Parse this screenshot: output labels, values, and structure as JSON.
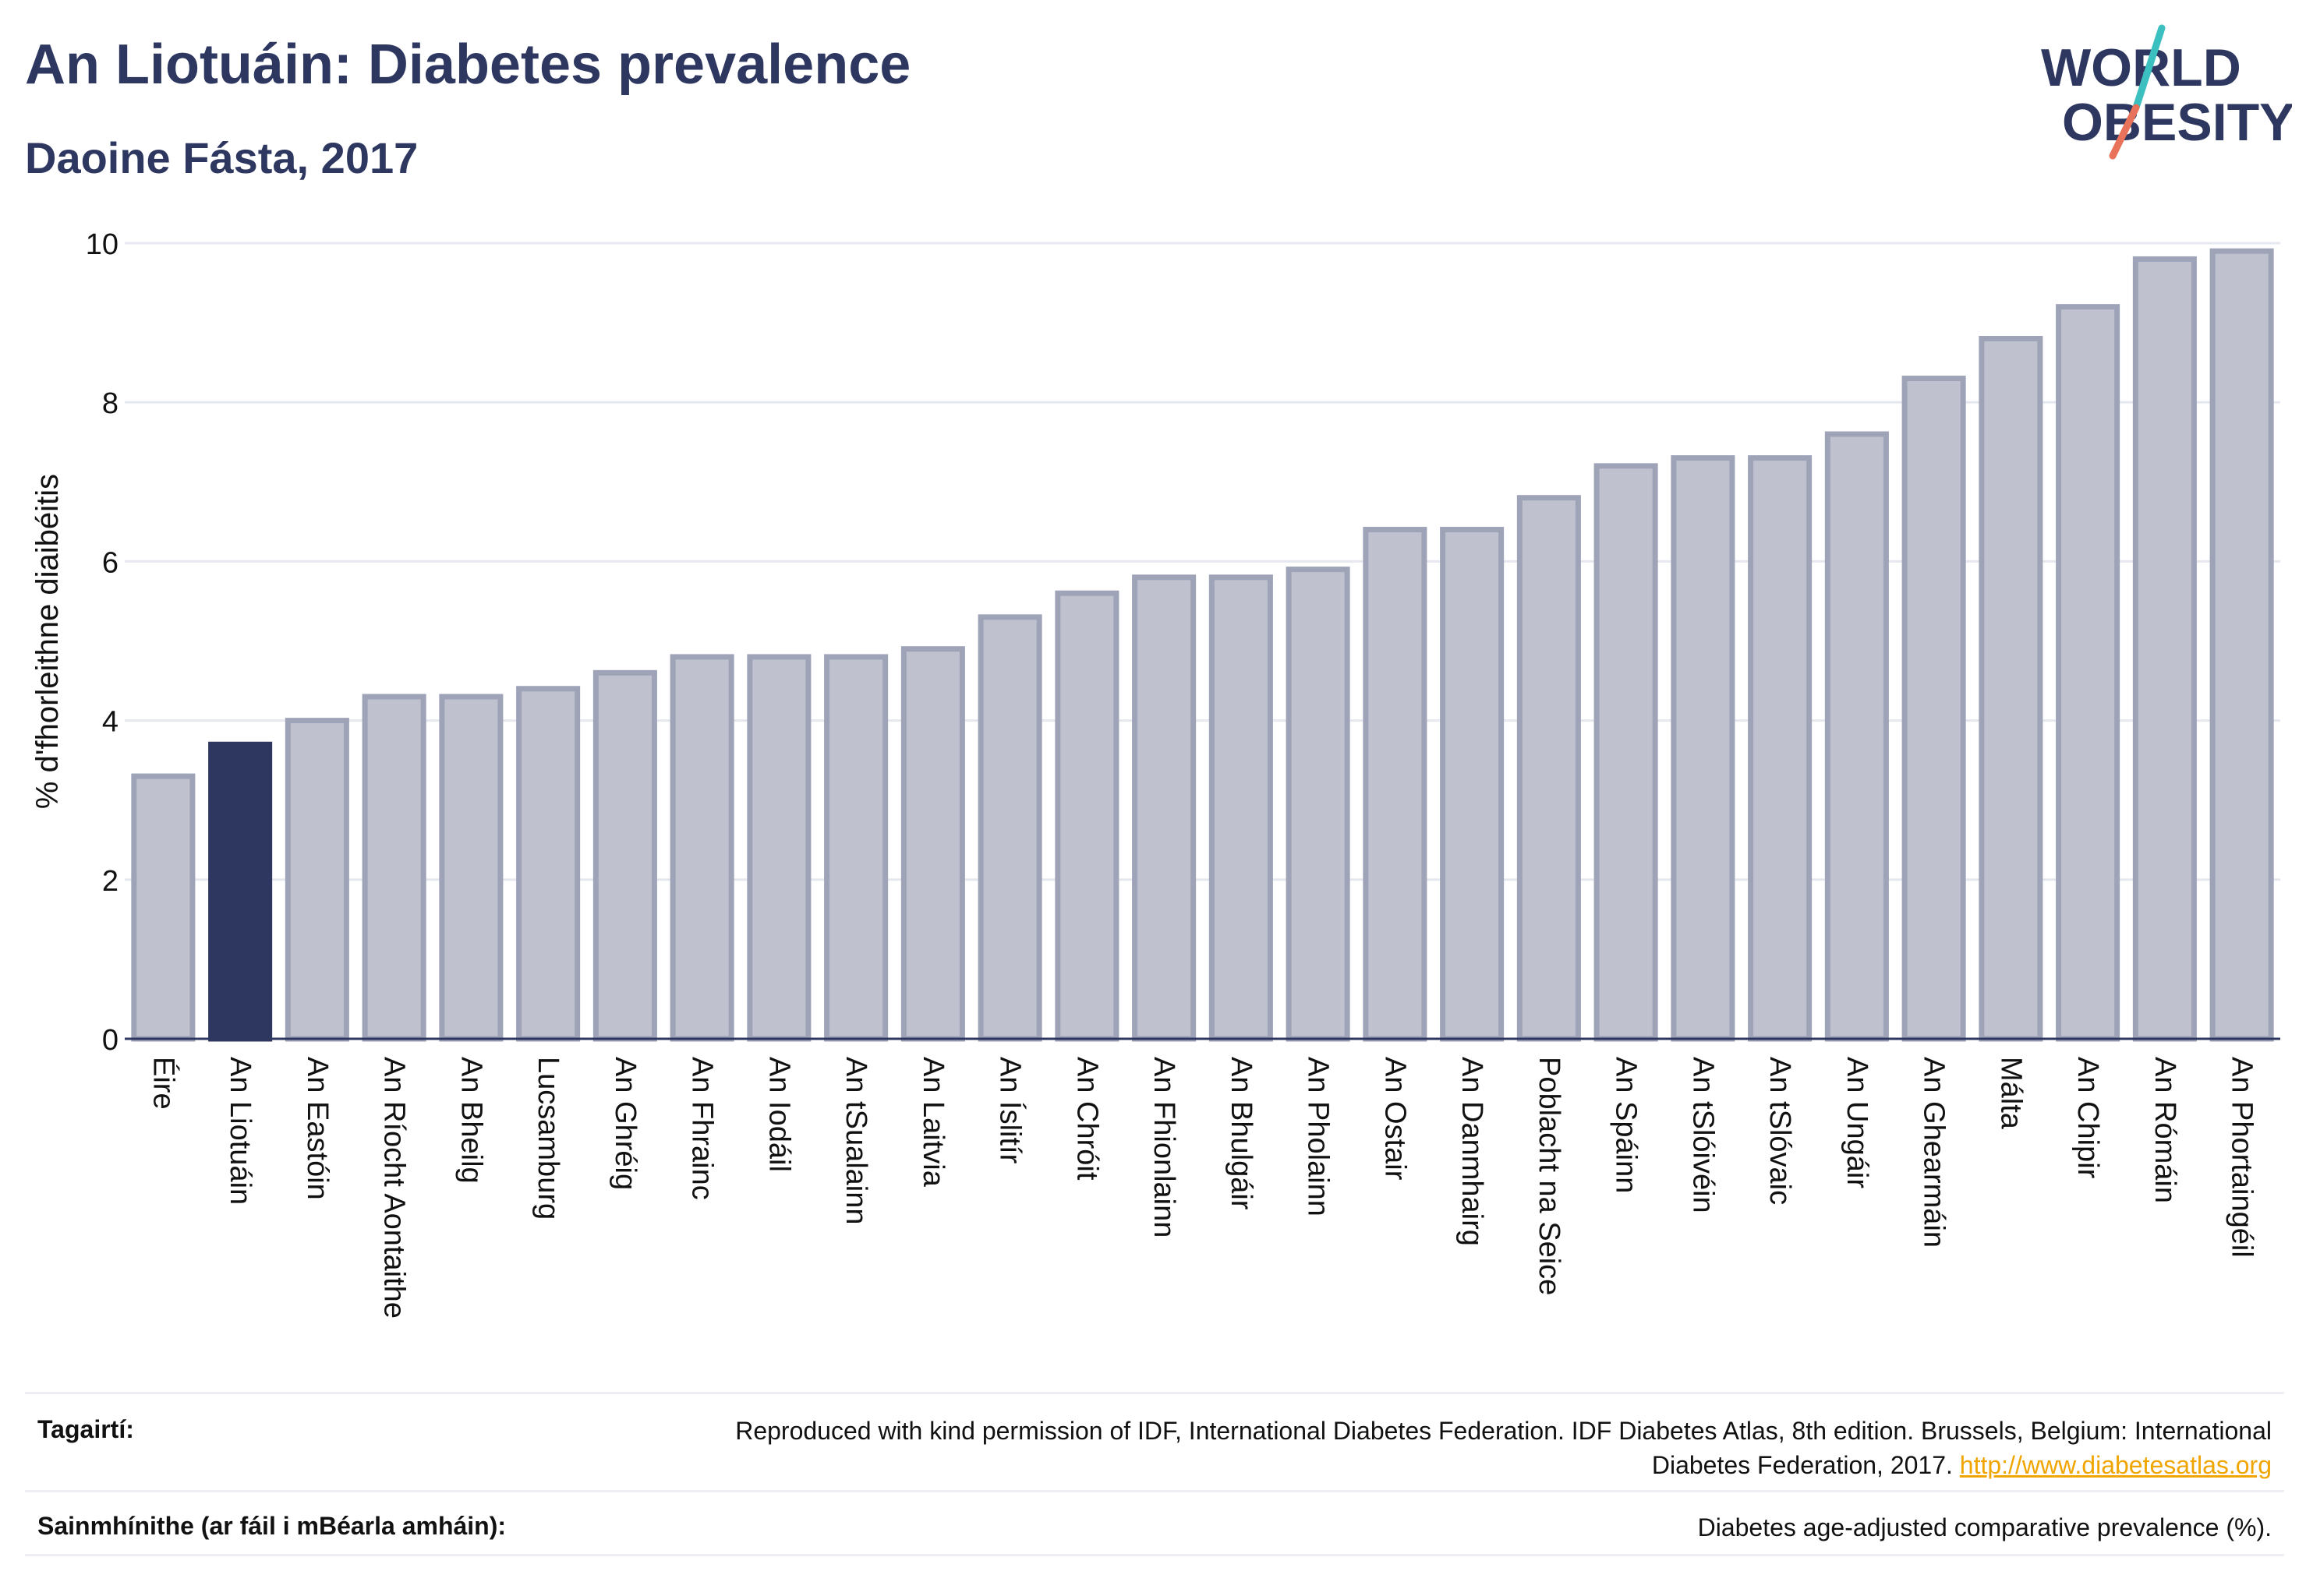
{
  "header": {
    "title": "An Liotuáin: Diabetes prevalence",
    "subtitle": "Daoine Fásta, 2017"
  },
  "logo": {
    "line1": "WORLD",
    "line2": "OBESITY",
    "accent_teal": "#3bbfbf",
    "accent_coral": "#e8735a"
  },
  "colors": {
    "highlight_bar": "#2d3760",
    "other_bar": "#bfc2ce",
    "bar_border": "#9ea3b8",
    "text": "#2d3760"
  },
  "chart_data": {
    "type": "bar",
    "title": "An Liotuáin: Diabetes prevalence",
    "subtitle": "Daoine Fásta, 2017",
    "xlabel": "",
    "ylabel": "% d'fhorleithne diaibéitis",
    "ylim": [
      0,
      10
    ],
    "yticks": [
      0,
      2,
      4,
      6,
      8,
      10
    ],
    "grid": true,
    "highlight": "An Liotuáin",
    "categories": [
      "Éire",
      "An Liotuáin",
      "An Eastóin",
      "An Ríocht Aontaithe",
      "An Bheilg",
      "Lucsamburg",
      "An Ghréig",
      "An Fhrainc",
      "An Iodáil",
      "An tSualainn",
      "An Laitvia",
      "An Íslitír",
      "An Chróit",
      "An Fhionlainn",
      "An Bhulgáir",
      "An Pholainn",
      "An Ostair",
      "An Danmhairg",
      "Poblacht na Seice",
      "An Spáinn",
      "An tSlóivéin",
      "An tSlóvaic",
      "An Ungáir",
      "An Ghearmáin",
      "Málta",
      "An Chipir",
      "An Rómáin",
      "An Phortaingéil"
    ],
    "values": [
      3.3,
      3.7,
      4.0,
      4.3,
      4.3,
      4.4,
      4.6,
      4.8,
      4.8,
      4.8,
      4.9,
      5.3,
      5.6,
      5.8,
      5.8,
      5.9,
      6.4,
      6.4,
      6.8,
      7.2,
      7.3,
      7.3,
      7.6,
      8.3,
      8.8,
      9.2,
      9.8,
      9.9
    ]
  },
  "references": {
    "label": "Tagairtí:",
    "text": "Reproduced with kind permission of IDF, International Diabetes Federation. IDF Diabetes Atlas, 8th edition. Brussels, Belgium: International Diabetes Federation, 2017.",
    "link": "http://www.diabetesatlas.org"
  },
  "definitions": {
    "label": "Sainmhínithe (ar fáil i mBéarla amháin):",
    "text": "Diabetes age-adjusted comparative prevalence (%)."
  }
}
